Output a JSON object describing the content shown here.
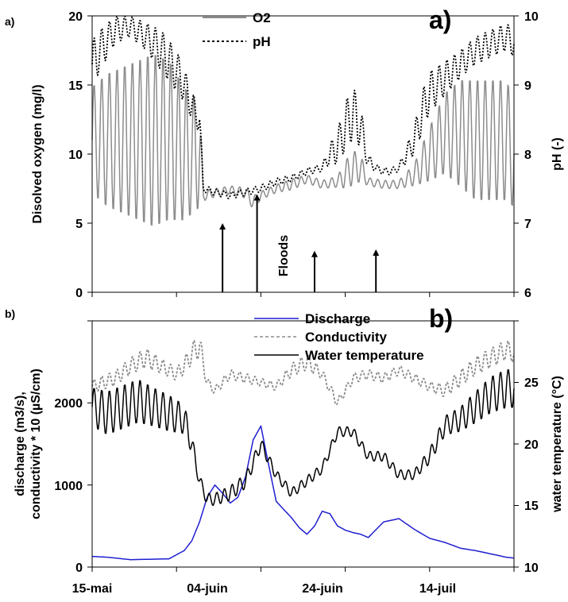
{
  "figure": {
    "x_ticks": [
      "15-mai",
      "04-juin",
      "24-juin",
      "14-juil"
    ]
  },
  "chart_data": [
    {
      "type": "line",
      "panel_label": "a)",
      "corner_label": "a)",
      "ylabel": "Disolved oxygen (mg/l)",
      "y2label": "pH (-)",
      "ylim": [
        0,
        20
      ],
      "y2lim": [
        6,
        10
      ],
      "yticks": [
        "0",
        "5",
        "10",
        "15",
        "20"
      ],
      "y2ticks": [
        "6",
        "7",
        "8",
        "9",
        "10"
      ],
      "xlim_days": [
        0,
        55
      ],
      "annotation": "Floods",
      "flood_arrows_day": [
        17,
        21.5,
        29,
        37
      ],
      "legend": {
        "position": "top-center",
        "entries": [
          "O2",
          "pH"
        ]
      },
      "series": [
        {
          "name": "O2",
          "color": "#8c8c8c",
          "style": "solid",
          "axis": "left",
          "x_day": [
            0,
            2,
            4,
            6,
            8,
            10,
            12,
            14,
            14.5,
            16,
            18,
            20,
            21,
            22,
            24,
            26,
            28,
            30,
            32,
            33,
            34,
            35,
            36,
            38,
            40,
            42,
            44,
            46,
            48,
            50,
            52,
            54,
            55
          ],
          "mid": [
            11,
            11,
            11,
            11,
            11,
            11,
            10,
            10,
            7,
            7.2,
            7.4,
            7.2,
            6.5,
            7,
            7.5,
            7.8,
            8.2,
            7.8,
            8,
            8.5,
            9,
            9,
            8,
            7.8,
            7.8,
            8.5,
            10,
            11.5,
            11.5,
            11,
            11,
            11,
            10
          ],
          "amp": [
            4,
            5,
            5.5,
            6,
            6.5,
            6,
            5,
            4,
            0.4,
            0.3,
            0.3,
            0.4,
            0.5,
            0.3,
            0.3,
            0.4,
            0.3,
            0.3,
            0.4,
            1,
            1.3,
            1,
            0.3,
            0.3,
            0.3,
            0.8,
            2,
            3,
            4,
            4.5,
            4.5,
            4.5,
            4
          ]
        },
        {
          "name": "pH",
          "color": "#000000",
          "style": "dotted",
          "axis": "right",
          "x_day": [
            0,
            1,
            3,
            5,
            7,
            9,
            11,
            12,
            13,
            14,
            14.5,
            16,
            18,
            20,
            22,
            24,
            26,
            28,
            30,
            31,
            32,
            33,
            34,
            35,
            36,
            37,
            38,
            39,
            40,
            42,
            43,
            44,
            46,
            48,
            50,
            52,
            54,
            55
          ],
          "mid": [
            9.3,
            9.5,
            9.8,
            9.85,
            9.7,
            9.5,
            9.2,
            9,
            8.7,
            8.5,
            7.5,
            7.45,
            7.4,
            7.45,
            7.5,
            7.6,
            7.65,
            7.75,
            7.8,
            8,
            8.1,
            8.4,
            8.6,
            8.4,
            7.9,
            7.8,
            7.75,
            7.75,
            7.8,
            8.2,
            8.6,
            8.9,
            9.1,
            9.3,
            9.5,
            9.6,
            9.7,
            9.6
          ],
          "amp": [
            0.35,
            0.3,
            0.2,
            0.15,
            0.2,
            0.3,
            0.3,
            0.25,
            0.2,
            0.2,
            0.05,
            0.05,
            0.05,
            0.05,
            0.05,
            0.05,
            0.05,
            0.05,
            0.05,
            0.15,
            0.25,
            0.35,
            0.4,
            0.3,
            0.1,
            0.05,
            0.05,
            0.05,
            0.05,
            0.2,
            0.3,
            0.3,
            0.25,
            0.2,
            0.2,
            0.2,
            0.2,
            0.2
          ]
        }
      ]
    },
    {
      "type": "line",
      "panel_label": "b)",
      "corner_label": "b)",
      "ylabel_line1": "discharge (m3/s),",
      "ylabel_line2": "conductivity * 10 (µS/cm)",
      "y2label": "water temperature (°C)",
      "ylim": [
        0,
        3000
      ],
      "y2lim": [
        10,
        30
      ],
      "yticks": [
        "0",
        "1000",
        "2000"
      ],
      "y2ticks": [
        "10",
        "15",
        "20",
        "25"
      ],
      "xlim_days": [
        0,
        55
      ],
      "legend": {
        "position": "top-center",
        "entries": [
          "Discharge",
          "Conductivity",
          "Water temperature"
        ]
      },
      "series": [
        {
          "name": "Discharge",
          "color": "#1f1fd0",
          "style": "solid",
          "axis": "left",
          "x_day": [
            0,
            2,
            5,
            10,
            12,
            13,
            14,
            15,
            16,
            17,
            18,
            19,
            20,
            21,
            22,
            23,
            24,
            25,
            26,
            27,
            28,
            29,
            30,
            31,
            32,
            33,
            34,
            35,
            36,
            38,
            40,
            42,
            44,
            46,
            48,
            50,
            52,
            54,
            55
          ],
          "y": [
            130,
            120,
            90,
            100,
            200,
            320,
            550,
            850,
            1000,
            900,
            780,
            850,
            1100,
            1550,
            1720,
            1250,
            800,
            700,
            600,
            480,
            400,
            500,
            680,
            650,
            500,
            450,
            420,
            400,
            360,
            550,
            590,
            460,
            350,
            300,
            230,
            200,
            160,
            120,
            110
          ]
        },
        {
          "name": "Conductivity",
          "color": "#8c8c8c",
          "style": "dashed",
          "axis": "left",
          "x_day": [
            0,
            3,
            5,
            7,
            9,
            11,
            12,
            13,
            14,
            15,
            16,
            18,
            20,
            22,
            24,
            26,
            28,
            30,
            32,
            33,
            34,
            36,
            38,
            40,
            42,
            44,
            46,
            48,
            50,
            52,
            54,
            55
          ],
          "mid": [
            2200,
            2300,
            2450,
            2550,
            2450,
            2350,
            2450,
            2600,
            2700,
            2250,
            2150,
            2350,
            2300,
            2250,
            2200,
            2400,
            2500,
            2350,
            2000,
            2150,
            2300,
            2350,
            2300,
            2400,
            2300,
            2200,
            2150,
            2300,
            2450,
            2550,
            2650,
            2600
          ],
          "amp": [
            80,
            90,
            100,
            120,
            90,
            80,
            100,
            130,
            150,
            60,
            50,
            60,
            60,
            50,
            50,
            80,
            100,
            60,
            60,
            50,
            60,
            60,
            60,
            60,
            60,
            60,
            80,
            100,
            110,
            120,
            120,
            110
          ]
        },
        {
          "name": "Water temperature",
          "color": "#000000",
          "style": "solid",
          "axis": "right",
          "x_day": [
            0,
            2,
            4,
            6,
            8,
            10,
            12,
            13,
            14,
            15,
            16,
            18,
            20,
            22,
            24,
            26,
            28,
            30,
            32,
            34,
            36,
            38,
            40,
            42,
            44,
            46,
            48,
            50,
            52,
            54,
            55
          ],
          "mid": [
            23,
            22.5,
            23,
            23.5,
            23,
            22.5,
            22,
            20,
            17,
            15.5,
            15.5,
            16,
            17,
            20,
            17.5,
            16,
            17,
            18,
            21,
            21,
            19,
            19,
            17.5,
            17.5,
            19,
            21.5,
            22,
            23,
            24,
            24.5,
            24.5
          ],
          "amp": [
            1.6,
            1.8,
            1.8,
            1.8,
            1.6,
            1.5,
            1.2,
            0.8,
            0.5,
            0.5,
            0.5,
            0.6,
            0.6,
            0.5,
            0.4,
            0.4,
            0.4,
            0.4,
            0.4,
            0.4,
            0.4,
            0.4,
            0.4,
            0.4,
            0.6,
            0.8,
            1,
            1.3,
            1.5,
            1.6,
            1.6
          ]
        }
      ]
    }
  ]
}
